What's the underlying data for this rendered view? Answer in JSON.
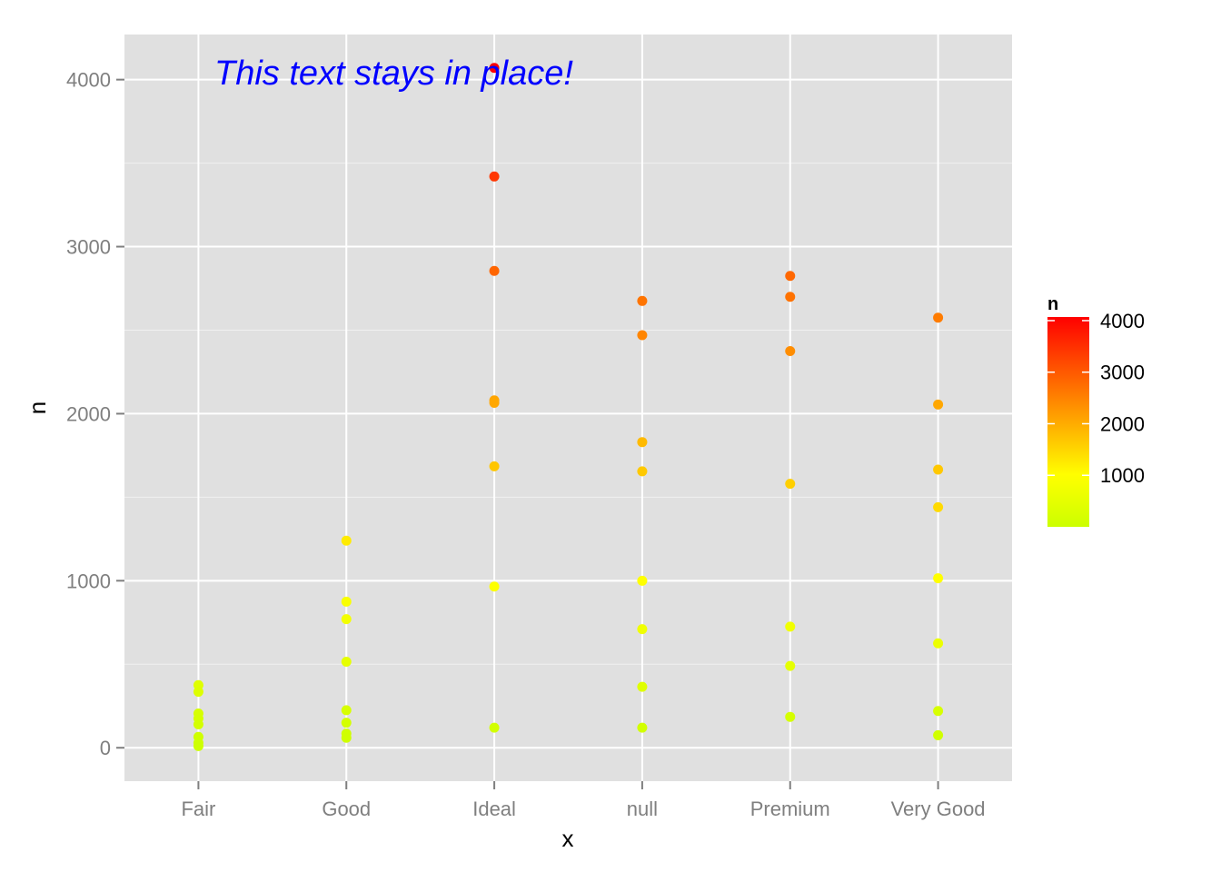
{
  "chart_data": {
    "type": "scatter",
    "title": "",
    "xlabel": "x",
    "ylabel": "n",
    "categories": [
      "Fair",
      "Good",
      "Ideal",
      "null",
      "Premium",
      "Very Good"
    ],
    "ylim": [
      -200,
      4270
    ],
    "yticks": [
      0,
      1000,
      2000,
      3000,
      4000
    ],
    "grid": true,
    "background": "#e0e0e0",
    "gridline_color": "#ffffff",
    "points": [
      {
        "x": "Fair",
        "y": 375
      },
      {
        "x": "Fair",
        "y": 335
      },
      {
        "x": "Fair",
        "y": 205
      },
      {
        "x": "Fair",
        "y": 175
      },
      {
        "x": "Fair",
        "y": 140
      },
      {
        "x": "Fair",
        "y": 65
      },
      {
        "x": "Fair",
        "y": 30
      },
      {
        "x": "Fair",
        "y": 10
      },
      {
        "x": "Good",
        "y": 1240
      },
      {
        "x": "Good",
        "y": 875
      },
      {
        "x": "Good",
        "y": 770
      },
      {
        "x": "Good",
        "y": 515
      },
      {
        "x": "Good",
        "y": 225
      },
      {
        "x": "Good",
        "y": 150
      },
      {
        "x": "Good",
        "y": 85
      },
      {
        "x": "Good",
        "y": 60
      },
      {
        "x": "Ideal",
        "y": 4070
      },
      {
        "x": "Ideal",
        "y": 3420
      },
      {
        "x": "Ideal",
        "y": 2855
      },
      {
        "x": "Ideal",
        "y": 2080
      },
      {
        "x": "Ideal",
        "y": 2065
      },
      {
        "x": "Ideal",
        "y": 1685
      },
      {
        "x": "Ideal",
        "y": 965
      },
      {
        "x": "Ideal",
        "y": 120
      },
      {
        "x": "null",
        "y": 2675
      },
      {
        "x": "null",
        "y": 2470
      },
      {
        "x": "null",
        "y": 1830
      },
      {
        "x": "null",
        "y": 1655
      },
      {
        "x": "null",
        "y": 1000
      },
      {
        "x": "null",
        "y": 710
      },
      {
        "x": "null",
        "y": 365
      },
      {
        "x": "null",
        "y": 120
      },
      {
        "x": "Premium",
        "y": 2825
      },
      {
        "x": "Premium",
        "y": 2700
      },
      {
        "x": "Premium",
        "y": 2375
      },
      {
        "x": "Premium",
        "y": 1580
      },
      {
        "x": "Premium",
        "y": 725
      },
      {
        "x": "Premium",
        "y": 490
      },
      {
        "x": "Premium",
        "y": 185
      },
      {
        "x": "Very Good",
        "y": 2575
      },
      {
        "x": "Very Good",
        "y": 2055
      },
      {
        "x": "Very Good",
        "y": 1665
      },
      {
        "x": "Very Good",
        "y": 1440
      },
      {
        "x": "Very Good",
        "y": 1015
      },
      {
        "x": "Very Good",
        "y": 625
      },
      {
        "x": "Very Good",
        "y": 220
      },
      {
        "x": "Very Good",
        "y": 75
      }
    ],
    "color_scale": {
      "title": "n",
      "min": 0,
      "max": 4070,
      "low_color": "#ccff00",
      "mid_color": "#ffff00",
      "mid_value": 1000,
      "high_color": "#ff0000",
      "ticks": [
        1000,
        2000,
        3000,
        4000
      ],
      "placement": "right"
    },
    "annotation": {
      "text": "This text stays in place!",
      "color": "#0000ff"
    }
  }
}
